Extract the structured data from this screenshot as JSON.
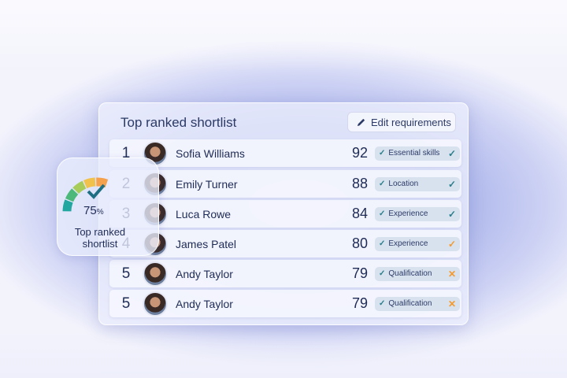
{
  "card": {
    "title": "Top ranked shortlist",
    "edit_button": "Edit requirements",
    "edit_icon": "pencil-icon"
  },
  "gauge": {
    "value": 75,
    "percent_label": "75",
    "unit": "%",
    "label_line1": "Top ranked",
    "label_line2": "shortlist",
    "check_icon": "check-icon",
    "colors": [
      "#21a6a0",
      "#4cb87a",
      "#a8cc5a",
      "#f0c14b",
      "#f5a04a"
    ]
  },
  "candidates": [
    {
      "rank": "1",
      "name": "Sofia Williams",
      "score": "92",
      "requirement": "Essential skills",
      "status": "met",
      "status_color": "#2a7d8a"
    },
    {
      "rank": "2",
      "name": "Emily Turner",
      "score": "88",
      "requirement": "Location",
      "status": "met",
      "status_color": "#2a7d8a"
    },
    {
      "rank": "3",
      "name": "Luca Rowe",
      "score": "84",
      "requirement": "Experience",
      "status": "met",
      "status_color": "#2a7d8a"
    },
    {
      "rank": "4",
      "name": "James Patel",
      "score": "80",
      "requirement": "Experience",
      "status": "partial",
      "status_color": "#f29a2e"
    },
    {
      "rank": "5",
      "name": "Andy Taylor",
      "score": "79",
      "requirement": "Qualification",
      "status": "not-met",
      "status_color": "#f29a2e"
    },
    {
      "rank": "5",
      "name": "Andy Taylor",
      "score": "79",
      "requirement": "Qualification",
      "status": "not-met",
      "status_color": "#f29a2e"
    }
  ]
}
